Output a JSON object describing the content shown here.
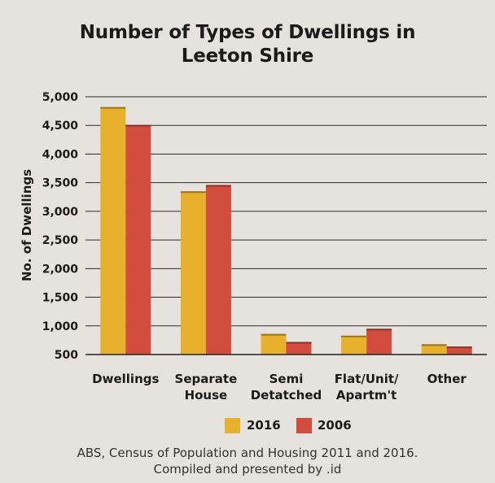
{
  "chart_data": {
    "type": "bar",
    "title": "Number of Types of Dwellings in Leeton Shire",
    "title_lines": [
      "Number of Types of Dwellings in",
      "Leeton Shire"
    ],
    "xlabel": "",
    "ylabel": "No. of Dwellings",
    "ylim": [
      500,
      5000
    ],
    "y_ticks": [
      500,
      1000,
      1500,
      2000,
      2500,
      3000,
      3500,
      4000,
      4500,
      5000
    ],
    "y_tick_labels": [
      "500",
      "1,000",
      "1,500",
      "2,000",
      "2,500",
      "3,000",
      "3,500",
      "4,000",
      "4,500",
      "5,000"
    ],
    "grid": true,
    "legend_position": "bottom",
    "categories": [
      "Dwellings",
      "Separate House",
      "Semi Detatched",
      "Flat/Unit/ Apartm't",
      "Other"
    ],
    "category_lines": [
      [
        "Dwellings"
      ],
      [
        "Separate",
        "House"
      ],
      [
        "Semi",
        "Detatched"
      ],
      [
        "Flat/Unit/",
        "Apartm't"
      ],
      [
        "Other"
      ]
    ],
    "series": [
      {
        "name": "2016",
        "color": "#e7b12d",
        "values": [
          4820,
          3350,
          860,
          830,
          680
        ]
      },
      {
        "name": "2006",
        "color": "#d24d3e",
        "values": [
          4510,
          3460,
          720,
          950,
          640
        ]
      }
    ]
  },
  "source": {
    "line1": "ABS, Census of Population and Housing 2011 and 2016.",
    "line2": "Compiled and presented by .id"
  }
}
